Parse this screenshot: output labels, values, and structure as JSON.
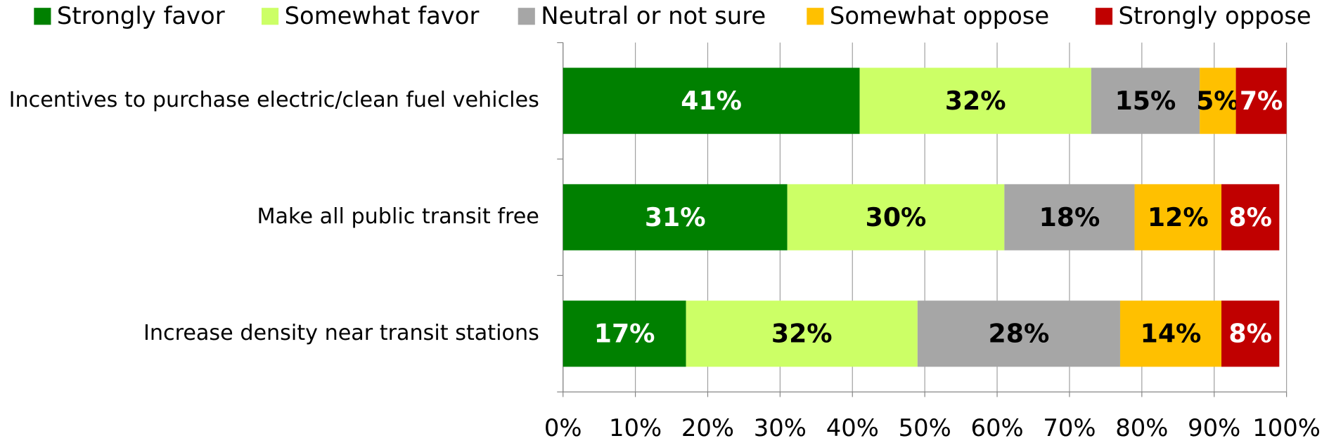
{
  "chart_data": {
    "type": "stacked-barh",
    "categories": [
      "Incentives to purchase electric/clean fuel vehicles",
      "Make all public transit free",
      "Increase density near transit stations"
    ],
    "series": [
      {
        "name": "Strongly favor",
        "color": "#008000",
        "text_color": "#ffffff",
        "values": [
          41,
          31,
          17
        ],
        "value_labels": [
          "41%",
          "31%",
          "17%"
        ]
      },
      {
        "name": "Somewhat favor",
        "color": "#ccff66",
        "text_color": "#000000",
        "values": [
          32,
          30,
          32
        ],
        "value_labels": [
          "32%",
          "30%",
          "32%"
        ]
      },
      {
        "name": "Neutral or not sure",
        "color": "#a6a6a6",
        "text_color": "#000000",
        "values": [
          15,
          18,
          28
        ],
        "value_labels": [
          "15%",
          "18%",
          "28%"
        ]
      },
      {
        "name": "Somewhat oppose",
        "color": "#ffc000",
        "text_color": "#000000",
        "values": [
          5,
          12,
          14
        ],
        "value_labels": [
          "5%",
          "12%",
          "14%"
        ]
      },
      {
        "name": "Strongly oppose",
        "color": "#c00000",
        "text_color": "#ffffff",
        "values": [
          7,
          8,
          8
        ],
        "value_labels": [
          "7%",
          "8%",
          "8%"
        ]
      }
    ],
    "xlim": [
      0,
      100
    ],
    "xticks": [
      {
        "value": 0,
        "label": "0%"
      },
      {
        "value": 10,
        "label": "10%"
      },
      {
        "value": 20,
        "label": "20%"
      },
      {
        "value": 30,
        "label": "30%"
      },
      {
        "value": 40,
        "label": "40%"
      },
      {
        "value": 50,
        "label": "50%"
      },
      {
        "value": 60,
        "label": "60%"
      },
      {
        "value": 70,
        "label": "70%"
      },
      {
        "value": 80,
        "label": "80%"
      },
      {
        "value": 90,
        "label": "90%"
      },
      {
        "value": 100,
        "label": "100%"
      }
    ],
    "grid": true,
    "legend": "top"
  }
}
